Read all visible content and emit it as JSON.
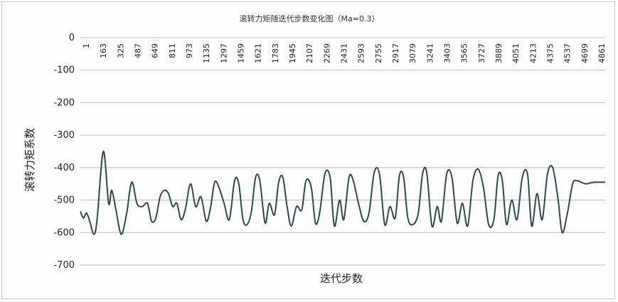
{
  "chart_data": {
    "type": "line",
    "title": "滚转力矩随迭代步数变化图（Ma=0.3）",
    "xlabel": "迭代步数",
    "ylabel": "滚转力矩系数",
    "ylim": [
      -700,
      0
    ],
    "yticks": [
      0,
      -100,
      -200,
      -300,
      -400,
      -500,
      -600,
      -700
    ],
    "xlim": [
      1,
      5000
    ],
    "xtick_labels": [
      "1",
      "163",
      "325",
      "487",
      "649",
      "811",
      "973",
      "1135",
      "1297",
      "1459",
      "1621",
      "1783",
      "1945",
      "2107",
      "2269",
      "2431",
      "2593",
      "2755",
      "2917",
      "3079",
      "3241",
      "3403",
      "3565",
      "3727",
      "3889",
      "4051",
      "4213",
      "4375",
      "4537",
      "4699",
      "4861"
    ],
    "grid": true,
    "legend": "none",
    "series": [
      {
        "color": "#2e4a4a",
        "x": [
          1,
          30,
          60,
          90,
          130,
          160,
          220,
          270,
          300,
          340,
          390,
          440,
          490,
          540,
          590,
          640,
          680,
          720,
          760,
          800,
          840,
          880,
          920,
          960,
          1000,
          1050,
          1100,
          1150,
          1200,
          1240,
          1280,
          1320,
          1370,
          1420,
          1470,
          1510,
          1550,
          1590,
          1630,
          1670,
          1710,
          1760,
          1800,
          1850,
          1890,
          1930,
          1970,
          2010,
          2060,
          2110,
          2150,
          2200,
          2240,
          2280,
          2330,
          2380,
          2420,
          2470,
          2510,
          2560,
          2600,
          2650,
          2700,
          2750,
          2800,
          2850,
          2900,
          2950,
          3000,
          3040,
          3080,
          3120,
          3170,
          3220,
          3260,
          3300,
          3350,
          3400,
          3440,
          3490,
          3540,
          3590,
          3640,
          3690,
          3740,
          3790,
          3840,
          3890,
          3940,
          3980,
          4020,
          4060,
          4110,
          4160,
          4210,
          4260,
          4300,
          4350,
          4400,
          4450,
          4500,
          4550,
          4590,
          4640,
          4690,
          4730,
          4770,
          4820,
          4860,
          4900,
          4950,
          5000
        ],
        "y": [
          -535,
          -555,
          -540,
          -565,
          -605,
          -560,
          -350,
          -510,
          -470,
          -530,
          -605,
          -545,
          -445,
          -510,
          -520,
          -510,
          -565,
          -555,
          -490,
          -470,
          -480,
          -520,
          -510,
          -560,
          -530,
          -450,
          -520,
          -490,
          -565,
          -525,
          -445,
          -460,
          -510,
          -560,
          -440,
          -450,
          -560,
          -575,
          -535,
          -430,
          -440,
          -570,
          -510,
          -545,
          -445,
          -430,
          -520,
          -580,
          -520,
          -530,
          -440,
          -460,
          -570,
          -540,
          -420,
          -430,
          -580,
          -500,
          -560,
          -430,
          -440,
          -510,
          -565,
          -540,
          -415,
          -420,
          -575,
          -520,
          -555,
          -425,
          -430,
          -555,
          -575,
          -540,
          -420,
          -415,
          -580,
          -520,
          -565,
          -420,
          -430,
          -570,
          -510,
          -580,
          -440,
          -405,
          -460,
          -575,
          -560,
          -425,
          -440,
          -575,
          -500,
          -560,
          -430,
          -420,
          -580,
          -480,
          -560,
          -420,
          -400,
          -495,
          -600,
          -540,
          -450,
          -440,
          -445,
          -450,
          -447,
          -445,
          -445,
          -445
        ]
      }
    ]
  }
}
